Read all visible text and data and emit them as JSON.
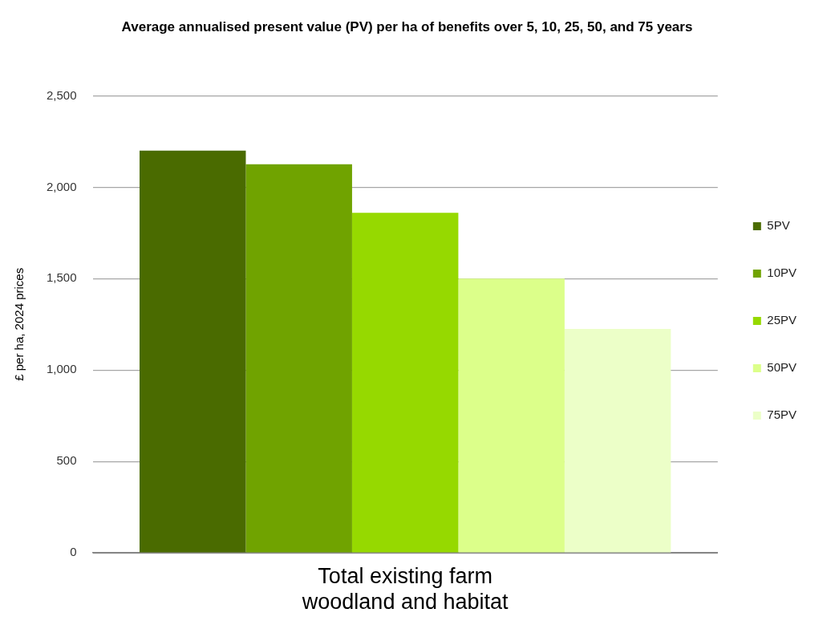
{
  "chart_data": {
    "type": "bar",
    "title": "Average annualised present value (PV) per ha of benefits over 5, 10, 25, 50, and 75 years",
    "ylabel": "£ per ha, 2024 prices",
    "categories": [
      "Total existing farm woodland and habitat"
    ],
    "series": [
      {
        "name": "5PV",
        "color": "#4a6b00",
        "values": [
          2200
        ]
      },
      {
        "name": "10PV",
        "color": "#70a300",
        "values": [
          2125
        ]
      },
      {
        "name": "25PV",
        "color": "#96d900",
        "values": [
          1860
        ]
      },
      {
        "name": "50PV",
        "color": "#dcff8a",
        "values": [
          1500
        ]
      },
      {
        "name": "75PV",
        "color": "#ecffc8",
        "values": [
          1225
        ]
      }
    ],
    "ylim": [
      0,
      2500
    ],
    "yticks": [
      {
        "value": 0,
        "label": "0"
      },
      {
        "value": 500,
        "label": "500"
      },
      {
        "value": 1000,
        "label": "1,000"
      },
      {
        "value": 1500,
        "label": "1,500"
      },
      {
        "value": 2000,
        "label": "2,000"
      },
      {
        "value": 2500,
        "label": "2,500"
      }
    ],
    "grid": "y",
    "legend": "right"
  }
}
